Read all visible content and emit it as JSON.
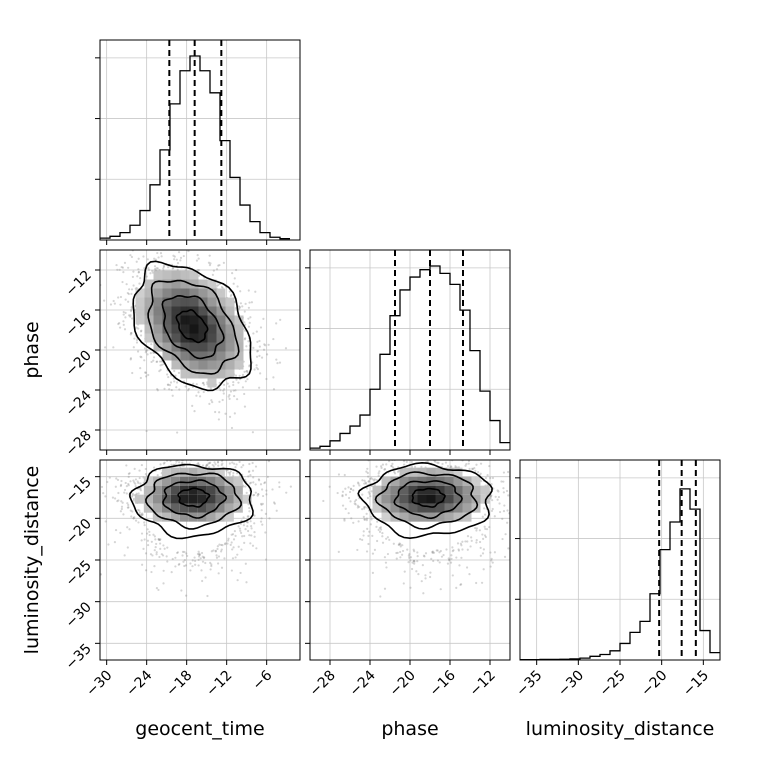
{
  "chart_data": {
    "type": "corner",
    "parameters": [
      {
        "name": "geocent_time",
        "label": "geocent_time",
        "range": [
          -31,
          -1
        ],
        "ticks": [
          -30,
          -24,
          -18,
          -12,
          -6
        ],
        "tick_labels": [
          "−30",
          "−24",
          "−18",
          "−12",
          "−6"
        ],
        "quantiles": [
          -20.6,
          -16.8,
          -12.8
        ],
        "hist": [
          {
            "x0": -31.0,
            "x1": -29.5,
            "v": 0.01
          },
          {
            "x0": -29.5,
            "x1": -28.0,
            "v": 0.02
          },
          {
            "x0": -28.0,
            "x1": -26.5,
            "v": 0.04
          },
          {
            "x0": -26.5,
            "x1": -25.0,
            "v": 0.08
          },
          {
            "x0": -25.0,
            "x1": -23.5,
            "v": 0.16
          },
          {
            "x0": -23.5,
            "x1": -22.0,
            "v": 0.3
          },
          {
            "x0": -22.0,
            "x1": -20.5,
            "v": 0.49
          },
          {
            "x0": -20.5,
            "x1": -19.0,
            "v": 0.74
          },
          {
            "x0": -19.0,
            "x1": -17.5,
            "v": 0.92
          },
          {
            "x0": -17.5,
            "x1": -16.0,
            "v": 1.0
          },
          {
            "x0": -16.0,
            "x1": -14.5,
            "v": 0.92
          },
          {
            "x0": -14.5,
            "x1": -13.0,
            "v": 0.8
          },
          {
            "x0": -13.0,
            "x1": -11.5,
            "v": 0.54
          },
          {
            "x0": -11.5,
            "x1": -10.0,
            "v": 0.34
          },
          {
            "x0": -10.0,
            "x1": -8.5,
            "v": 0.19
          },
          {
            "x0": -8.5,
            "x1": -7.0,
            "v": 0.1
          },
          {
            "x0": -7.0,
            "x1": -5.5,
            "v": 0.04
          },
          {
            "x0": -5.5,
            "x1": -4.0,
            "v": 0.015
          },
          {
            "x0": -4.0,
            "x1": -2.5,
            "v": 0.007
          }
        ]
      },
      {
        "name": "phase",
        "label": "phase",
        "range": [
          -30,
          -10
        ],
        "ticks": [
          -28,
          -24,
          -20,
          -16,
          -12
        ],
        "tick_labels": [
          "−28",
          "−24",
          "−20",
          "−16",
          "−12"
        ],
        "quantiles": [
          -21.5,
          -18.0,
          -14.7
        ],
        "hist": [
          {
            "x0": -30.0,
            "x1": -29.0,
            "v": 0.01
          },
          {
            "x0": -29.0,
            "x1": -28.0,
            "v": 0.02
          },
          {
            "x0": -28.0,
            "x1": -27.0,
            "v": 0.05
          },
          {
            "x0": -27.0,
            "x1": -26.0,
            "v": 0.09
          },
          {
            "x0": -26.0,
            "x1": -25.0,
            "v": 0.13
          },
          {
            "x0": -25.0,
            "x1": -24.0,
            "v": 0.19
          },
          {
            "x0": -24.0,
            "x1": -23.0,
            "v": 0.33
          },
          {
            "x0": -23.0,
            "x1": -22.0,
            "v": 0.52
          },
          {
            "x0": -22.0,
            "x1": -21.0,
            "v": 0.73
          },
          {
            "x0": -21.0,
            "x1": -20.0,
            "v": 0.87
          },
          {
            "x0": -20.0,
            "x1": -19.0,
            "v": 0.94
          },
          {
            "x0": -19.0,
            "x1": -18.0,
            "v": 0.98
          },
          {
            "x0": -18.0,
            "x1": -17.0,
            "v": 1.0
          },
          {
            "x0": -17.0,
            "x1": -16.0,
            "v": 0.96
          },
          {
            "x0": -16.0,
            "x1": -15.0,
            "v": 0.9
          },
          {
            "x0": -15.0,
            "x1": -14.0,
            "v": 0.76
          },
          {
            "x0": -14.0,
            "x1": -13.0,
            "v": 0.54
          },
          {
            "x0": -13.0,
            "x1": -12.0,
            "v": 0.32
          },
          {
            "x0": -12.0,
            "x1": -11.0,
            "v": 0.16
          },
          {
            "x0": -11.0,
            "x1": -10.0,
            "v": 0.04
          }
        ]
      },
      {
        "name": "luminosity_distance",
        "label": "luminosity_distance",
        "range": [
          -37,
          -13
        ],
        "ticks": [
          -35,
          -30,
          -25,
          -20,
          -15
        ],
        "tick_labels": [
          "−35",
          "−30",
          "−25",
          "−20",
          "−15"
        ],
        "quantiles": [
          -20.3,
          -17.6,
          -15.9
        ],
        "hist": [
          {
            "x0": -37.0,
            "x1": -35.8,
            "v": 0.002
          },
          {
            "x0": -35.8,
            "x1": -34.6,
            "v": 0.002
          },
          {
            "x0": -34.6,
            "x1": -33.4,
            "v": 0.003
          },
          {
            "x0": -33.4,
            "x1": -32.2,
            "v": 0.003
          },
          {
            "x0": -32.2,
            "x1": -31.0,
            "v": 0.004
          },
          {
            "x0": -31.0,
            "x1": -29.8,
            "v": 0.006
          },
          {
            "x0": -29.8,
            "x1": -28.6,
            "v": 0.01
          },
          {
            "x0": -28.6,
            "x1": -27.4,
            "v": 0.02
          },
          {
            "x0": -27.4,
            "x1": -26.2,
            "v": 0.03
          },
          {
            "x0": -26.2,
            "x1": -25.0,
            "v": 0.05
          },
          {
            "x0": -25.0,
            "x1": -23.8,
            "v": 0.09
          },
          {
            "x0": -23.8,
            "x1": -22.6,
            "v": 0.15
          },
          {
            "x0": -22.6,
            "x1": -21.4,
            "v": 0.21
          },
          {
            "x0": -21.4,
            "x1": -20.2,
            "v": 0.36
          },
          {
            "x0": -20.2,
            "x1": -19.0,
            "v": 0.6
          },
          {
            "x0": -19.0,
            "x1": -17.8,
            "v": 0.75
          },
          {
            "x0": -17.8,
            "x1": -16.6,
            "v": 0.93
          },
          {
            "x0": -16.6,
            "x1": -15.4,
            "v": 0.82
          },
          {
            "x0": -15.4,
            "x1": -14.2,
            "v": 0.16
          },
          {
            "x0": -14.2,
            "x1": -13.0,
            "v": 0.04
          }
        ]
      }
    ],
    "pairs": [
      {
        "x": "geocent_time",
        "y": "phase",
        "mean": [
          -17.2,
          -17.6
        ],
        "sd": [
          4.4,
          3.1
        ],
        "corr": -0.35
      },
      {
        "x": "geocent_time",
        "y": "luminosity_distance",
        "mean": [
          -17.0,
          -17.4
        ],
        "sd": [
          4.5,
          1.9
        ],
        "corr": 0.0
      },
      {
        "x": "phase",
        "y": "luminosity_distance",
        "mean": [
          -18.2,
          -17.4
        ],
        "sd": [
          3.2,
          1.9
        ],
        "corr": 0.0
      }
    ],
    "contour_levels": [
      0.5,
      1.0,
      1.5,
      2.0
    ],
    "grid": true,
    "legend": "none"
  }
}
